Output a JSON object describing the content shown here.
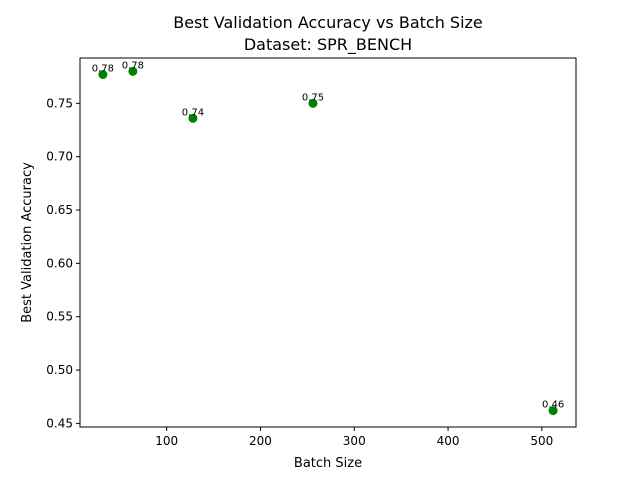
{
  "chart_data": {
    "type": "scatter",
    "title": "Best Validation Accuracy vs Batch Size",
    "subtitle": "Dataset: SPR_BENCH",
    "xlabel": "Batch Size",
    "ylabel": "Best Validation Accuracy",
    "xlim": [
      7.6,
      536.4
    ],
    "ylim": [
      0.4466,
      0.7925
    ],
    "xticks": [
      100,
      200,
      300,
      400,
      500
    ],
    "yticks": [
      0.45,
      0.5,
      0.55,
      0.6,
      0.65,
      0.7,
      0.75
    ],
    "ytick_labels": [
      "0.45",
      "0.50",
      "0.55",
      "0.60",
      "0.65",
      "0.70",
      "0.75"
    ],
    "grid": false,
    "marker_color": "#008000",
    "points": [
      {
        "x": 32,
        "y": 0.777,
        "label": "0.78"
      },
      {
        "x": 64,
        "y": 0.78,
        "label": "0.78"
      },
      {
        "x": 128,
        "y": 0.736,
        "label": "0.74"
      },
      {
        "x": 256,
        "y": 0.75,
        "label": "0.75"
      },
      {
        "x": 512,
        "y": 0.462,
        "label": "0.46"
      }
    ]
  }
}
